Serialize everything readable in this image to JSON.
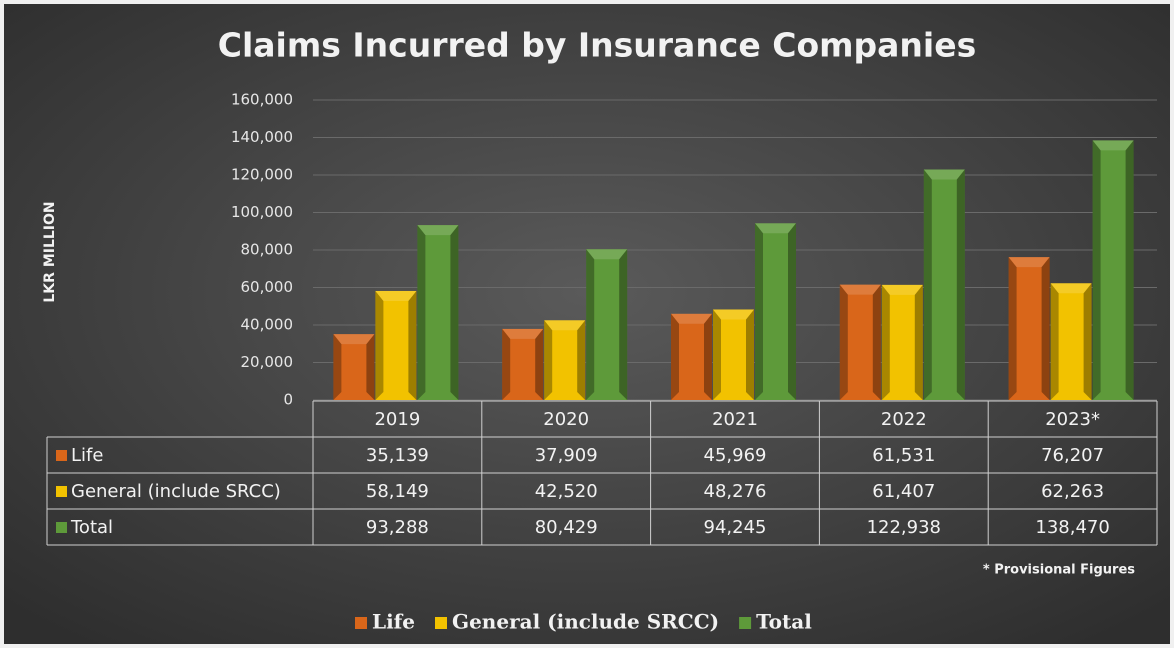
{
  "chart_data": {
    "type": "bar",
    "title": "Claims Incurred by Insurance Companies",
    "y_label": "LKR MILLION",
    "annotation": "* Provisional Figures",
    "categories": [
      "2019",
      "2020",
      "2021",
      "2022",
      "2023*"
    ],
    "series": [
      {
        "name": "Life",
        "color": "#d9661a",
        "values": [
          35139,
          37909,
          45969,
          61531,
          76207
        ],
        "value_labels": [
          "35,139",
          "37,909",
          "45,969",
          "61,531",
          "76,207"
        ]
      },
      {
        "name": "General (include SRCC)",
        "color": "#f2c200",
        "values": [
          58149,
          42520,
          48276,
          61407,
          62263
        ],
        "value_labels": [
          "58,149",
          "42,520",
          "48,276",
          "61,407",
          "62,263"
        ]
      },
      {
        "name": "Total",
        "color": "#5e9a3a",
        "values": [
          93288,
          80429,
          94245,
          122938,
          138470
        ],
        "value_labels": [
          "93,288",
          "80,429",
          "94,245",
          "122,938",
          "138,470"
        ]
      }
    ],
    "ylim": [
      0,
      160000
    ],
    "yticks": [
      0,
      {
        "value": 20000,
        "label": "20,000"
      },
      {
        "value": 40000,
        "label": "40,000"
      },
      {
        "value": 60000,
        "label": "60,000"
      },
      {
        "value": 80000,
        "label": "80,000"
      },
      {
        "value": 100000,
        "label": "100,000"
      },
      {
        "value": 120000,
        "label": "120,000"
      },
      {
        "value": 140000,
        "label": "140,000"
      },
      {
        "value": 160000,
        "label": "160,000"
      }
    ],
    "grid": true,
    "legend": "bottom"
  }
}
